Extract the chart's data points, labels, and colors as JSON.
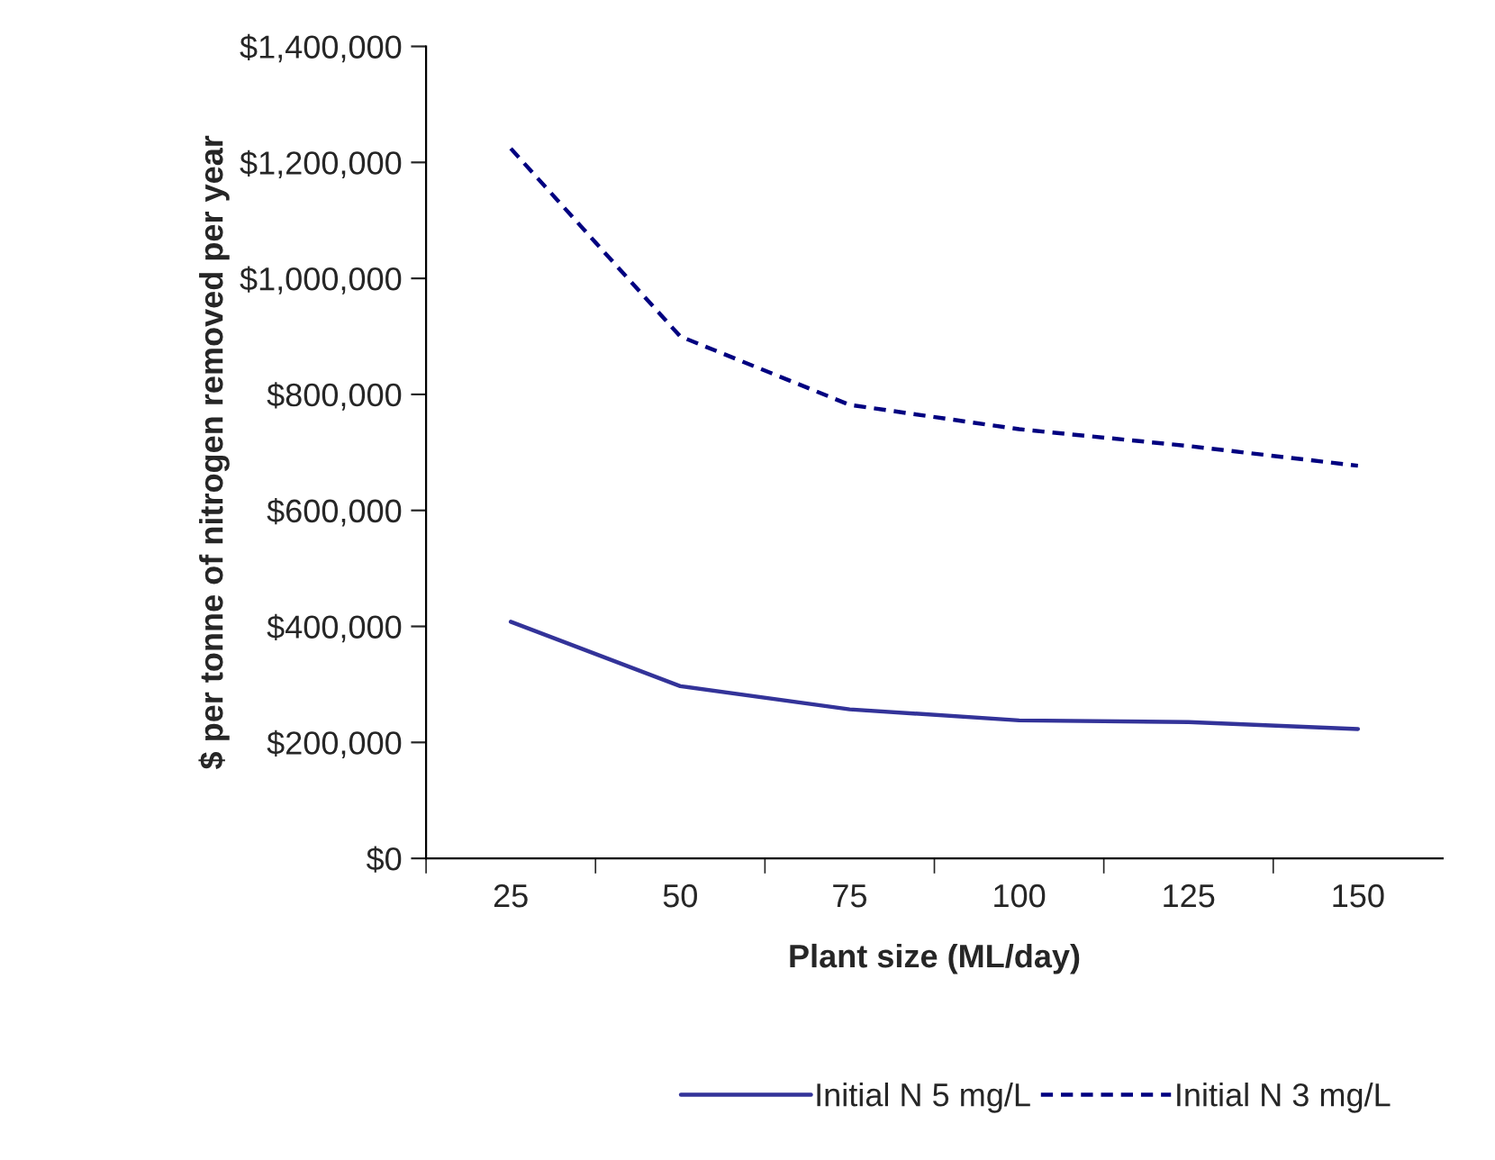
{
  "chart_data": {
    "type": "line",
    "xlabel": "Plant size (ML/day)",
    "ylabel": "$ per tonne of nitrogen removed per year",
    "categories": [
      "25",
      "50",
      "75",
      "100",
      "125",
      "150"
    ],
    "series": [
      {
        "name": "Initial N 5 mg/L",
        "color": "#333399",
        "line_style": "solid",
        "values": [
          408000,
          297000,
          257000,
          238000,
          235000,
          223000
        ]
      },
      {
        "name": "Initial N 3 mg/L",
        "color": "#000080",
        "line_style": "dashed",
        "values": [
          1224000,
          900000,
          782000,
          740000,
          711000,
          677000
        ]
      }
    ],
    "ylim": [
      0,
      1400000
    ],
    "yticks": [
      {
        "value": 0,
        "label": "$0"
      },
      {
        "value": 200000,
        "label": "$200,000"
      },
      {
        "value": 400000,
        "label": "$400,000"
      },
      {
        "value": 600000,
        "label": "$600,000"
      },
      {
        "value": 800000,
        "label": "$800,000"
      },
      {
        "value": 1000000,
        "label": "$1,000,000"
      },
      {
        "value": 1200000,
        "label": "$1,200,000"
      },
      {
        "value": 1400000,
        "label": "$1,400,000"
      }
    ],
    "grid": false,
    "legend": "bottom",
    "marker": "none"
  }
}
